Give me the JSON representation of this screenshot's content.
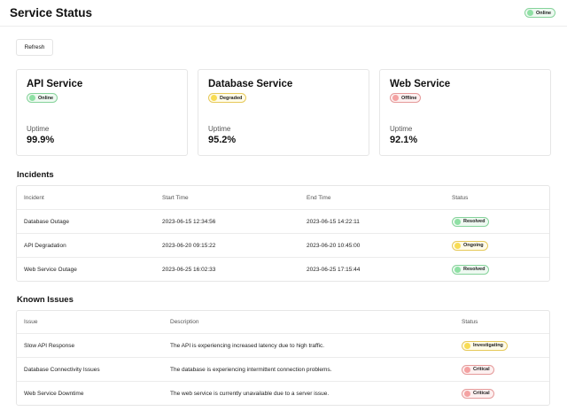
{
  "app": {
    "title": "Service Status",
    "status": "Online"
  },
  "toolbar": {
    "refresh_label": "Refresh"
  },
  "services": [
    {
      "name": "API Service",
      "status": "Online",
      "status_color": "#8fe0a4",
      "uptime_label": "Uptime",
      "uptime": "99.9%"
    },
    {
      "name": "Database Service",
      "status": "Degraded",
      "status_color": "#f8dc54",
      "uptime_label": "Uptime",
      "uptime": "95.2%"
    },
    {
      "name": "Web Service",
      "status": "Offline",
      "status_color": "#f4a2a2",
      "uptime_label": "Uptime",
      "uptime": "92.1%"
    }
  ],
  "incidents": {
    "title": "Incidents",
    "columns": [
      "Incident",
      "Start Time",
      "End Time",
      "Status"
    ],
    "rows": [
      {
        "incident": "Database Outage",
        "start": "2023-06-15 12:34:56",
        "end": "2023-06-15 14:22:11",
        "status": "Resolved"
      },
      {
        "incident": "API Degradation",
        "start": "2023-06-20 09:15:22",
        "end": "2023-06-20 10:45:00",
        "status": "Ongoing"
      },
      {
        "incident": "Web Service Outage",
        "start": "2023-06-25 16:02:33",
        "end": "2023-06-25 17:15:44",
        "status": "Resolved"
      }
    ]
  },
  "issues": {
    "title": "Known Issues",
    "columns": [
      "Issue",
      "Description",
      "Status"
    ],
    "rows": [
      {
        "issue": "Slow API Response",
        "description": "The API is experiencing increased latency due to high traffic.",
        "status": "Investigating"
      },
      {
        "issue": "Database Connectivity Issues",
        "description": "The database is experiencing intermittent connection problems.",
        "status": "Critical"
      },
      {
        "issue": "Web Service Downtime",
        "description": "The web service is currently unavailable due to a server issue.",
        "status": "Critical"
      }
    ]
  },
  "colors": {
    "online": "#8fe0a4",
    "warning": "#f8dc54",
    "critical": "#f4a2a2"
  }
}
